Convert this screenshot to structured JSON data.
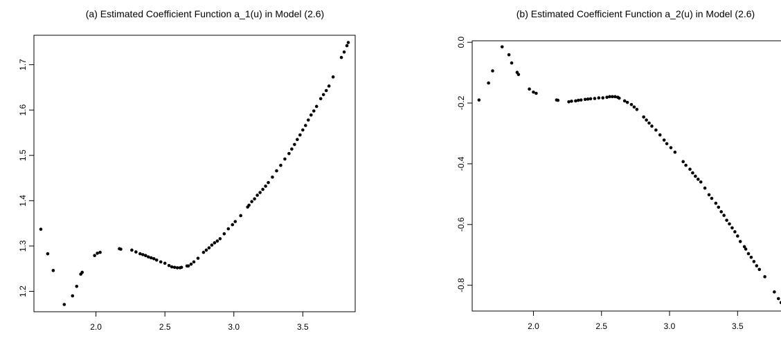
{
  "chart_data": [
    {
      "type": "scatter",
      "title": "(a) Estimated Coefficient Function a_1(u) in Model (2.6)",
      "xlabel": "",
      "ylabel": "",
      "xlim": [
        1.55,
        3.88
      ],
      "ylim": [
        1.155,
        1.765
      ],
      "xticks": [
        2.0,
        2.5,
        3.0,
        3.5
      ],
      "xtick_labels": [
        "2.0",
        "2.5",
        "3.0",
        "3.5"
      ],
      "yticks": [
        1.2,
        1.3,
        1.4,
        1.5,
        1.6,
        1.7
      ],
      "ytick_labels": [
        "1.2",
        "1.3",
        "1.4",
        "1.5",
        "1.6",
        "1.7"
      ],
      "grid": false,
      "series": [
        {
          "color": "#000000",
          "points": [
            [
              1.6,
              1.337
            ],
            [
              1.65,
              1.283
            ],
            [
              1.69,
              1.246
            ],
            [
              1.77,
              1.171
            ],
            [
              1.83,
              1.19
            ],
            [
              1.86,
              1.211
            ],
            [
              1.89,
              1.238
            ],
            [
              1.9,
              1.242
            ],
            [
              1.99,
              1.279
            ],
            [
              2.01,
              1.284
            ],
            [
              2.03,
              1.286
            ],
            [
              2.17,
              1.294
            ],
            [
              2.18,
              1.293
            ],
            [
              2.26,
              1.291
            ],
            [
              2.29,
              1.287
            ],
            [
              2.32,
              1.283
            ],
            [
              2.34,
              1.281
            ],
            [
              2.36,
              1.279
            ],
            [
              2.38,
              1.276
            ],
            [
              2.4,
              1.274
            ],
            [
              2.42,
              1.272
            ],
            [
              2.44,
              1.269
            ],
            [
              2.47,
              1.265
            ],
            [
              2.5,
              1.262
            ],
            [
              2.53,
              1.257
            ],
            [
              2.55,
              1.254
            ],
            [
              2.57,
              1.253
            ],
            [
              2.59,
              1.252
            ],
            [
              2.61,
              1.252
            ],
            [
              2.62,
              1.253
            ],
            [
              2.66,
              1.256
            ],
            [
              2.67,
              1.256
            ],
            [
              2.69,
              1.26
            ],
            [
              2.71,
              1.265
            ],
            [
              2.74,
              1.273
            ],
            [
              2.78,
              1.286
            ],
            [
              2.8,
              1.291
            ],
            [
              2.82,
              1.296
            ],
            [
              2.84,
              1.302
            ],
            [
              2.86,
              1.307
            ],
            [
              2.88,
              1.311
            ],
            [
              2.9,
              1.316
            ],
            [
              2.93,
              1.327
            ],
            [
              2.96,
              1.338
            ],
            [
              2.99,
              1.347
            ],
            [
              3.01,
              1.354
            ],
            [
              3.05,
              1.367
            ],
            [
              3.1,
              1.386
            ],
            [
              3.11,
              1.39
            ],
            [
              3.13,
              1.398
            ],
            [
              3.15,
              1.404
            ],
            [
              3.17,
              1.412
            ],
            [
              3.19,
              1.418
            ],
            [
              3.21,
              1.425
            ],
            [
              3.23,
              1.432
            ],
            [
              3.25,
              1.44
            ],
            [
              3.28,
              1.452
            ],
            [
              3.31,
              1.466
            ],
            [
              3.34,
              1.478
            ],
            [
              3.37,
              1.492
            ],
            [
              3.4,
              1.504
            ],
            [
              3.42,
              1.514
            ],
            [
              3.44,
              1.524
            ],
            [
              3.46,
              1.535
            ],
            [
              3.48,
              1.545
            ],
            [
              3.5,
              1.556
            ],
            [
              3.52,
              1.566
            ],
            [
              3.54,
              1.578
            ],
            [
              3.56,
              1.589
            ],
            [
              3.58,
              1.598
            ],
            [
              3.6,
              1.608
            ],
            [
              3.63,
              1.625
            ],
            [
              3.65,
              1.634
            ],
            [
              3.67,
              1.643
            ],
            [
              3.69,
              1.653
            ],
            [
              3.72,
              1.673
            ],
            [
              3.78,
              1.716
            ],
            [
              3.8,
              1.728
            ],
            [
              3.82,
              1.742
            ],
            [
              3.83,
              1.749
            ]
          ]
        }
      ]
    },
    {
      "type": "scatter",
      "title": "(b) Estimated Coefficient Function a_2(u) in Model (2.6)",
      "xlabel": "",
      "ylabel": "",
      "xlim": [
        1.55,
        3.88
      ],
      "ylim": [
        -0.885,
        0.005
      ],
      "xticks": [
        2.0,
        2.5,
        3.0,
        3.5
      ],
      "xtick_labels": [
        "2.0",
        "2.5",
        "3.0",
        "3.5"
      ],
      "yticks": [
        0.0,
        -0.2,
        -0.4,
        -0.6,
        -0.8
      ],
      "ytick_labels": [
        "0.0",
        "-0.2",
        "-0.4",
        "-0.6",
        "-0.8"
      ],
      "grid": false,
      "series": [
        {
          "color": "#000000",
          "points": [
            [
              1.6,
              -0.19
            ],
            [
              1.67,
              -0.134
            ],
            [
              1.7,
              -0.094
            ],
            [
              1.77,
              -0.015
            ],
            [
              1.82,
              -0.041
            ],
            [
              1.84,
              -0.068
            ],
            [
              1.88,
              -0.099
            ],
            [
              1.89,
              -0.106
            ],
            [
              1.97,
              -0.154
            ],
            [
              2.0,
              -0.164
            ],
            [
              2.02,
              -0.168
            ],
            [
              2.17,
              -0.19
            ],
            [
              2.18,
              -0.191
            ],
            [
              2.26,
              -0.196
            ],
            [
              2.28,
              -0.194
            ],
            [
              2.31,
              -0.193
            ],
            [
              2.33,
              -0.191
            ],
            [
              2.35,
              -0.19
            ],
            [
              2.38,
              -0.188
            ],
            [
              2.4,
              -0.187
            ],
            [
              2.42,
              -0.186
            ],
            [
              2.45,
              -0.185
            ],
            [
              2.48,
              -0.183
            ],
            [
              2.51,
              -0.183
            ],
            [
              2.54,
              -0.181
            ],
            [
              2.56,
              -0.179
            ],
            [
              2.58,
              -0.179
            ],
            [
              2.6,
              -0.179
            ],
            [
              2.62,
              -0.181
            ],
            [
              2.63,
              -0.184
            ],
            [
              2.67,
              -0.193
            ],
            [
              2.69,
              -0.198
            ],
            [
              2.72,
              -0.205
            ],
            [
              2.74,
              -0.213
            ],
            [
              2.76,
              -0.221
            ],
            [
              2.81,
              -0.246
            ],
            [
              2.83,
              -0.256
            ],
            [
              2.85,
              -0.266
            ],
            [
              2.87,
              -0.276
            ],
            [
              2.9,
              -0.289
            ],
            [
              2.93,
              -0.305
            ],
            [
              2.96,
              -0.322
            ],
            [
              2.98,
              -0.334
            ],
            [
              3.01,
              -0.347
            ],
            [
              3.04,
              -0.362
            ],
            [
              3.1,
              -0.393
            ],
            [
              3.12,
              -0.405
            ],
            [
              3.15,
              -0.418
            ],
            [
              3.17,
              -0.43
            ],
            [
              3.19,
              -0.441
            ],
            [
              3.21,
              -0.451
            ],
            [
              3.23,
              -0.46
            ],
            [
              3.26,
              -0.48
            ],
            [
              3.29,
              -0.502
            ],
            [
              3.31,
              -0.514
            ],
            [
              3.34,
              -0.53
            ],
            [
              3.36,
              -0.543
            ],
            [
              3.38,
              -0.558
            ],
            [
              3.4,
              -0.57
            ],
            [
              3.42,
              -0.586
            ],
            [
              3.44,
              -0.598
            ],
            [
              3.46,
              -0.611
            ],
            [
              3.48,
              -0.624
            ],
            [
              3.5,
              -0.638
            ],
            [
              3.52,
              -0.656
            ],
            [
              3.55,
              -0.673
            ],
            [
              3.56,
              -0.681
            ],
            [
              3.58,
              -0.696
            ],
            [
              3.6,
              -0.708
            ],
            [
              3.62,
              -0.722
            ],
            [
              3.64,
              -0.736
            ],
            [
              3.66,
              -0.748
            ],
            [
              3.7,
              -0.772
            ],
            [
              3.77,
              -0.822
            ],
            [
              3.8,
              -0.844
            ],
            [
              3.82,
              -0.857
            ],
            [
              3.83,
              -0.867
            ]
          ]
        }
      ]
    }
  ]
}
